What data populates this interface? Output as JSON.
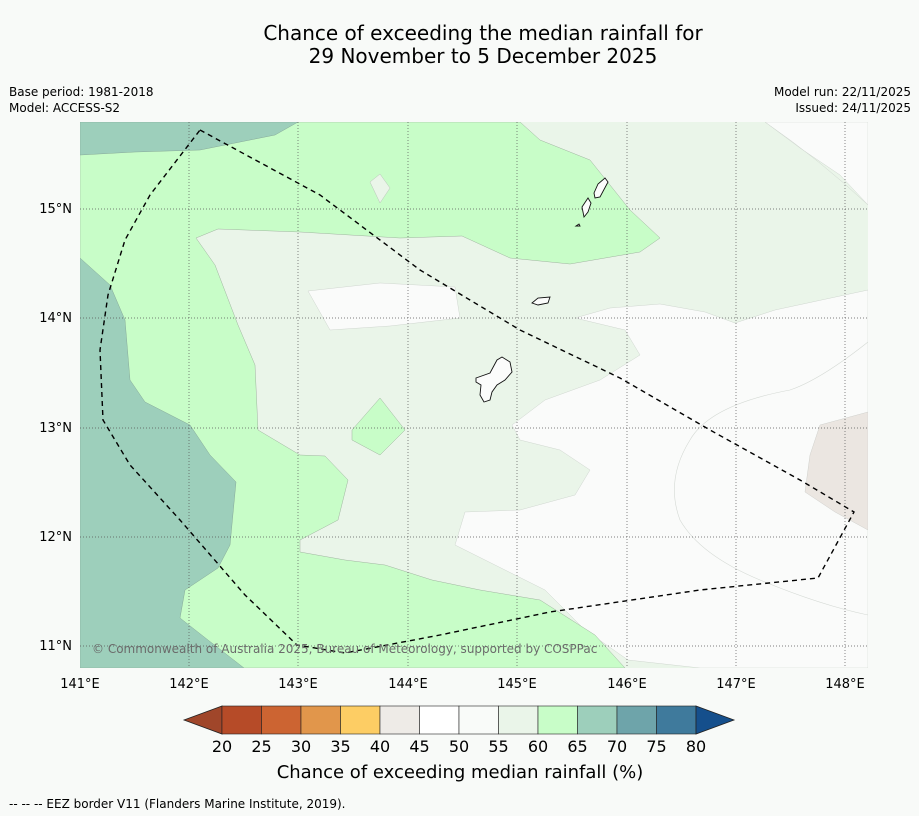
{
  "title": {
    "line1": "Chance of exceeding the median rainfall for",
    "line2": "29 November to 5 December 2025"
  },
  "meta": {
    "base_period": "Base period: 1981-2018",
    "model": "Model: ACCESS-S2",
    "model_run": "Model run: 22/11/2025",
    "issued": "Issued: 24/11/2025"
  },
  "map": {
    "latitudes": [
      "15°N",
      "14°N",
      "13°N",
      "12°N",
      "11°N"
    ],
    "longitudes": [
      "141°E",
      "142°E",
      "143°E",
      "144°E",
      "145°E",
      "146°E",
      "147°E",
      "148°E"
    ],
    "copyright": "© Commonwealth of Australia 2025, Bureau of Meteorology, supported by COSPPac"
  },
  "colorbar": {
    "title": "Chance of exceeding median rainfall (%)",
    "ticks": [
      "20",
      "25",
      "30",
      "35",
      "40",
      "45",
      "50",
      "55",
      "60",
      "65",
      "70",
      "75",
      "80"
    ],
    "colors": [
      "#a0462a",
      "#b64b28",
      "#cc6432",
      "#e1964b",
      "#fdcd64",
      "#eeebe7",
      "#ffffff",
      "#f9fbf9",
      "#eaf5e9",
      "#c8fdc8",
      "#9dcfbb",
      "#6ea4aa",
      "#3f7a9c",
      "#154f8c"
    ]
  },
  "footer": {
    "legend": "-- -- -- EEZ border V11 (Flanders Marine Institute, 2019)."
  }
}
